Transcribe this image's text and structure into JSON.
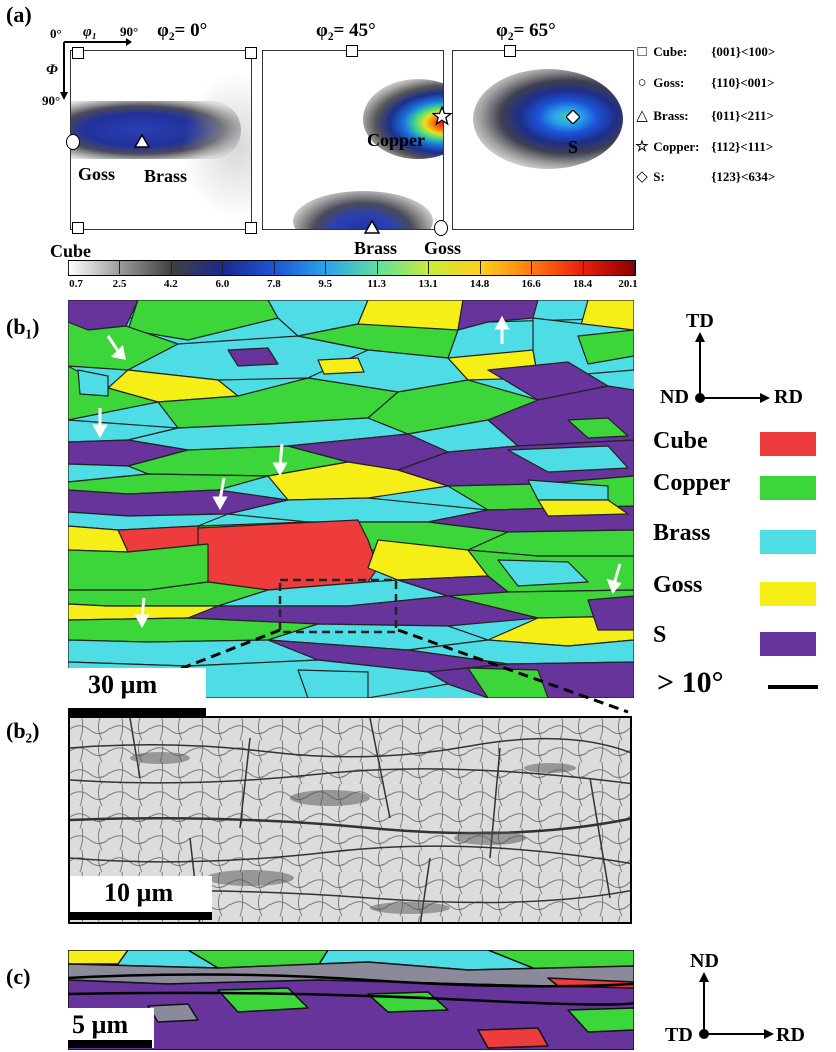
{
  "panel_a": {
    "label": "(a)",
    "axes": {
      "origin": "0°",
      "phi1": "φ₁",
      "ninety_h": "90°",
      "Phi": "Φ",
      "ninety_v": "90°"
    },
    "sections": [
      {
        "title": "φ₂= 0°",
        "labels": [
          "Goss",
          "Brass",
          "Cube"
        ]
      },
      {
        "title": "φ₂= 45°",
        "labels": [
          "Copper",
          "Brass",
          "Goss"
        ]
      },
      {
        "title": "φ₂= 65°",
        "labels": [
          "S"
        ]
      }
    ],
    "legend": [
      {
        "symbol": "□",
        "name": "Cube:",
        "index": "{001}<100>"
      },
      {
        "symbol": "○",
        "name": "Goss:",
        "index": "{110}<001>"
      },
      {
        "symbol": "△",
        "name": "Brass:",
        "index": "{011}<211>"
      },
      {
        "symbol": "☆",
        "name": "Copper:",
        "index": "{112}<111>"
      },
      {
        "symbol": "◇",
        "name": "S:",
        "index": "{123}<634>"
      }
    ],
    "colorbar_ticks": [
      "0.7",
      "2.5",
      "4.2",
      "6.0",
      "7.8",
      "9.5",
      "11.3",
      "13.1",
      "14.8",
      "16.6",
      "18.4",
      "20.1"
    ],
    "colorbar_colors": [
      "#ffffff",
      "#9a9a9a",
      "#404040",
      "#1a2b8f",
      "#1c55d8",
      "#2aa4e8",
      "#5ee0a0",
      "#c8ec3a",
      "#ffcf1a",
      "#ff7a10",
      "#e81d10",
      "#8b0000"
    ]
  },
  "panel_b1": {
    "label": "(b₁)",
    "scale": "30 µm",
    "axes": {
      "up": "TD",
      "center": "ND",
      "right": "RD"
    },
    "components": [
      {
        "name": "Cube",
        "color": "#ee3b3b"
      },
      {
        "name": "Copper",
        "color": "#3dd63a"
      },
      {
        "name": "Brass",
        "color": "#4fdde5"
      },
      {
        "name": "Goss",
        "color": "#f6ee17"
      },
      {
        "name": "S",
        "color": "#66349a"
      }
    ],
    "boundary_label": "> 10°"
  },
  "panel_b2": {
    "label": "(b₂)",
    "scale": "10 µm"
  },
  "panel_c": {
    "label": "(c)",
    "scale": "5 µm",
    "axes": {
      "up": "ND",
      "center": "TD",
      "right": "RD"
    }
  }
}
